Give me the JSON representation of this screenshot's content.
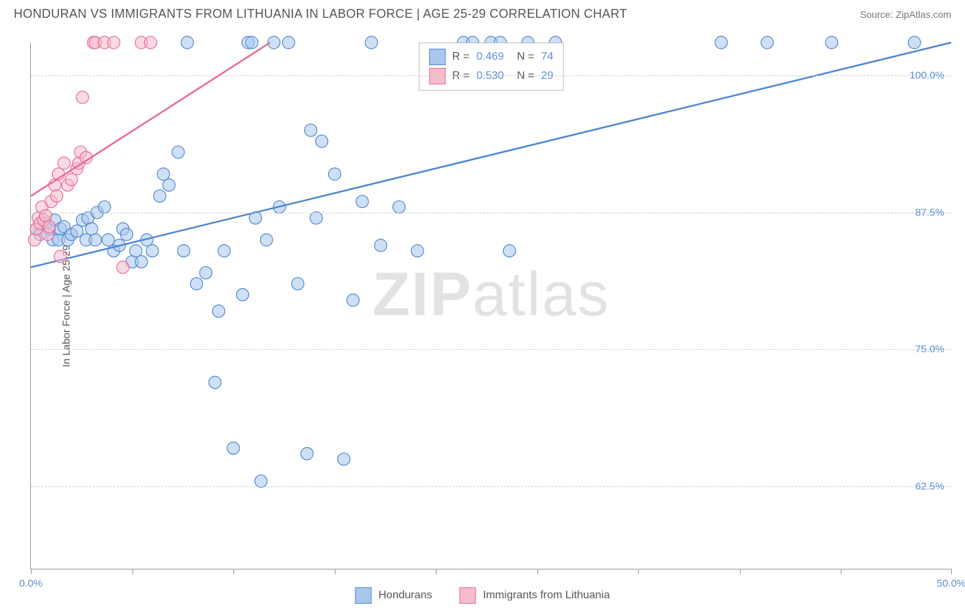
{
  "title": "HONDURAN VS IMMIGRANTS FROM LITHUANIA IN LABOR FORCE | AGE 25-29 CORRELATION CHART",
  "source": "Source: ZipAtlas.com",
  "ylabel": "In Labor Force | Age 25-29",
  "watermark_bold": "ZIP",
  "watermark_rest": "atlas",
  "chart": {
    "type": "scatter-with-regression",
    "background_color": "#ffffff",
    "grid_color": "#cccccc",
    "axis_color": "#999999",
    "label_color": "#555555",
    "value_color": "#5a8fd6",
    "xlim": [
      0,
      50
    ],
    "ylim": [
      55,
      103
    ],
    "xticks": [
      0,
      5.5,
      11,
      16.5,
      22,
      27.5,
      33,
      38.5,
      44,
      50
    ],
    "xtick_labels": {
      "0": "0.0%",
      "50": "50.0%"
    },
    "yticks": [
      62.5,
      75.0,
      87.5,
      100.0
    ],
    "ytick_labels": [
      "62.5%",
      "75.0%",
      "87.5%",
      "100.0%"
    ],
    "marker_radius": 9,
    "marker_opacity": 0.55,
    "line_width": 2.5,
    "series": [
      {
        "name": "Hondurans",
        "color_fill": "#a8c7ec",
        "color_stroke": "#4e87d0",
        "R": "0.469",
        "N": "74",
        "trend": {
          "x1": 0,
          "y1": 82.5,
          "x2": 50,
          "y2": 103
        },
        "points": [
          [
            0.3,
            86
          ],
          [
            0.5,
            85.5
          ],
          [
            0.8,
            86.5
          ],
          [
            1.0,
            86
          ],
          [
            1.2,
            85
          ],
          [
            1.3,
            86.8
          ],
          [
            1.5,
            85
          ],
          [
            1.6,
            86
          ],
          [
            1.8,
            86.2
          ],
          [
            2.0,
            85
          ],
          [
            2.2,
            85.5
          ],
          [
            2.5,
            85.8
          ],
          [
            2.8,
            86.8
          ],
          [
            3.0,
            85
          ],
          [
            3.1,
            87
          ],
          [
            3.3,
            86
          ],
          [
            3.5,
            85
          ],
          [
            3.6,
            87.5
          ],
          [
            4.0,
            88
          ],
          [
            4.2,
            85
          ],
          [
            4.5,
            84
          ],
          [
            4.8,
            84.5
          ],
          [
            5.0,
            86
          ],
          [
            5.2,
            85.5
          ],
          [
            5.5,
            83
          ],
          [
            5.7,
            84
          ],
          [
            6.0,
            83
          ],
          [
            6.3,
            85
          ],
          [
            6.6,
            84
          ],
          [
            7.0,
            89
          ],
          [
            7.2,
            91
          ],
          [
            7.5,
            90
          ],
          [
            8.0,
            93
          ],
          [
            8.3,
            84
          ],
          [
            8.5,
            103
          ],
          [
            9.0,
            81
          ],
          [
            9.5,
            82
          ],
          [
            10.0,
            72
          ],
          [
            10.5,
            84
          ],
          [
            10.2,
            78.5
          ],
          [
            11.0,
            66
          ],
          [
            11.5,
            80
          ],
          [
            11.8,
            103
          ],
          [
            12.0,
            103
          ],
          [
            12.2,
            87
          ],
          [
            12.5,
            63
          ],
          [
            12.8,
            85
          ],
          [
            13.2,
            103
          ],
          [
            13.5,
            88
          ],
          [
            14.0,
            103
          ],
          [
            14.5,
            81
          ],
          [
            15.0,
            65.5
          ],
          [
            15.2,
            95
          ],
          [
            15.5,
            87
          ],
          [
            15.8,
            94
          ],
          [
            16.5,
            91
          ],
          [
            17.0,
            65
          ],
          [
            17.5,
            79.5
          ],
          [
            18.0,
            88.5
          ],
          [
            18.5,
            103
          ],
          [
            19.0,
            84.5
          ],
          [
            20.0,
            88
          ],
          [
            21.0,
            84
          ],
          [
            23.5,
            103
          ],
          [
            24.0,
            103
          ],
          [
            25.0,
            103
          ],
          [
            25.5,
            103
          ],
          [
            26.0,
            84
          ],
          [
            27.0,
            103
          ],
          [
            28.5,
            103
          ],
          [
            37.5,
            103
          ],
          [
            40.0,
            103
          ],
          [
            43.5,
            103
          ],
          [
            48.0,
            103
          ]
        ]
      },
      {
        "name": "Immigrants from Lithuania",
        "color_fill": "#f5bccb",
        "color_stroke": "#e76b94",
        "R": "0.530",
        "N": "29",
        "trend": {
          "x1": 0,
          "y1": 89,
          "x2": 13,
          "y2": 103
        },
        "points": [
          [
            0.2,
            85
          ],
          [
            0.3,
            86
          ],
          [
            0.4,
            87
          ],
          [
            0.5,
            86.5
          ],
          [
            0.6,
            88
          ],
          [
            0.7,
            86.8
          ],
          [
            0.8,
            87.2
          ],
          [
            0.9,
            85.5
          ],
          [
            1.0,
            86.2
          ],
          [
            1.1,
            88.5
          ],
          [
            1.3,
            90
          ],
          [
            1.4,
            89
          ],
          [
            1.5,
            91
          ],
          [
            1.6,
            83.5
          ],
          [
            1.8,
            92
          ],
          [
            2.0,
            90
          ],
          [
            2.2,
            90.5
          ],
          [
            2.5,
            91.5
          ],
          [
            2.6,
            92
          ],
          [
            2.7,
            93
          ],
          [
            2.8,
            98
          ],
          [
            3.0,
            92.5
          ],
          [
            3.4,
            103
          ],
          [
            3.5,
            103
          ],
          [
            4.0,
            103
          ],
          [
            4.5,
            103
          ],
          [
            5.0,
            82.5
          ],
          [
            6.0,
            103
          ],
          [
            6.5,
            103
          ]
        ]
      }
    ]
  },
  "bottom_legend": [
    {
      "label": "Hondurans",
      "fill": "#a8c7ec",
      "stroke": "#4e87d0"
    },
    {
      "label": "Immigrants from Lithuania",
      "fill": "#f5bccb",
      "stroke": "#e76b94"
    }
  ]
}
